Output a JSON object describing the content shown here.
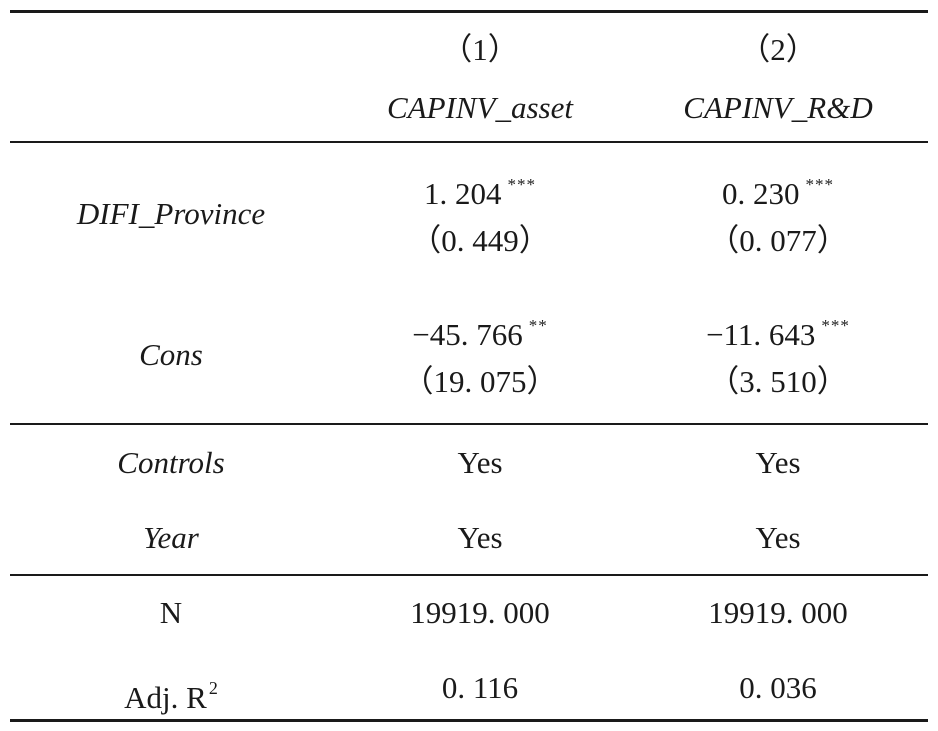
{
  "header": {
    "col1_number": "（1）",
    "col2_number": "（2）",
    "col1_name": "CAPINV_asset",
    "col2_name": "CAPINV_R&D"
  },
  "rows": {
    "difi": {
      "label": "DIFI_Province",
      "col1_coef": "1. 204",
      "col1_stars": "***",
      "col1_se": "（0. 449）",
      "col2_coef": "0. 230",
      "col2_stars": "***",
      "col2_se": "（0. 077）"
    },
    "cons": {
      "label": "Cons",
      "col1_coef": "−45. 766",
      "col1_stars": "**",
      "col1_se": "（19. 075）",
      "col2_coef": "−11. 643",
      "col2_stars": "***",
      "col2_se": "（3. 510）"
    },
    "controls": {
      "label": "Controls",
      "col1": "Yes",
      "col2": "Yes"
    },
    "year": {
      "label": "Year",
      "col1": "Yes",
      "col2": "Yes"
    },
    "n": {
      "label": "N",
      "col1": "19919. 000",
      "col2": "19919. 000"
    },
    "adjr2": {
      "label": "Adj. R",
      "label_sup": "2",
      "col1": "0. 116",
      "col2": "0. 036"
    }
  }
}
